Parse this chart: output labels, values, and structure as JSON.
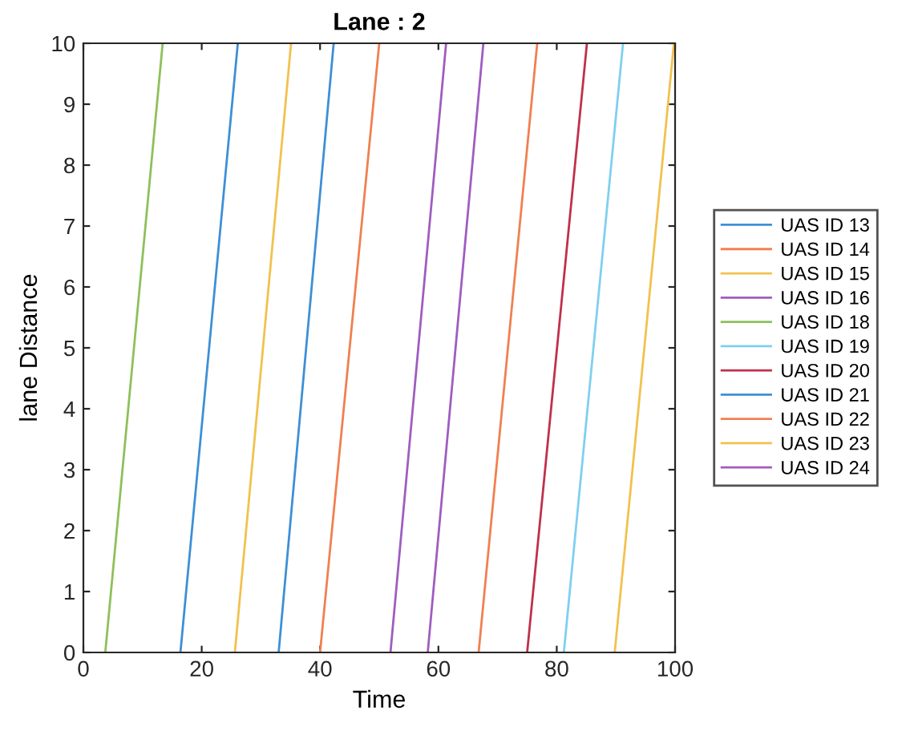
{
  "chart_data": {
    "type": "line",
    "title": "Lane : 2",
    "xlabel": "Time",
    "ylabel": "lane Distance",
    "xlim": [
      0,
      100
    ],
    "xticks": [
      0,
      20,
      40,
      60,
      80,
      100
    ],
    "ylim": [
      0,
      10
    ],
    "yticks": [
      0,
      1,
      2,
      3,
      4,
      5,
      6,
      7,
      8,
      9,
      10
    ],
    "grid": false,
    "legend": "right",
    "line_style": "solid",
    "marker": "none",
    "series": [
      {
        "name": "UAS ID 13",
        "color": "#3d8fd6",
        "x": [
          16.4,
          26.1
        ],
        "values": [
          0,
          10
        ]
      },
      {
        "name": "UAS ID 14",
        "color": "#f08050",
        "x": [
          40.0,
          50.0
        ],
        "values": [
          0,
          10
        ]
      },
      {
        "name": "UAS ID 15",
        "color": "#f2c14e",
        "x": [
          25.6,
          35.1
        ],
        "values": [
          0,
          10
        ]
      },
      {
        "name": "UAS ID 16",
        "color": "#a05cc0",
        "x": [
          51.9,
          61.3
        ],
        "values": [
          0,
          10
        ]
      },
      {
        "name": "UAS ID 18",
        "color": "#8dc05a",
        "x": [
          3.7,
          13.4
        ],
        "values": [
          0,
          10
        ]
      },
      {
        "name": "UAS ID 19",
        "color": "#7fcff0",
        "x": [
          81.2,
          91.2
        ],
        "values": [
          0,
          10
        ]
      },
      {
        "name": "UAS ID 20",
        "color": "#c0304a",
        "x": [
          75.0,
          85.1
        ],
        "values": [
          0,
          10
        ]
      },
      {
        "name": "UAS ID 21",
        "color": "#3d8fd6",
        "x": [
          33.0,
          42.3
        ],
        "values": [
          0,
          10
        ]
      },
      {
        "name": "UAS ID 22",
        "color": "#f08050",
        "x": [
          66.8,
          76.7
        ],
        "values": [
          0,
          10
        ]
      },
      {
        "name": "UAS ID 23",
        "color": "#f2c14e",
        "x": [
          89.8,
          99.8
        ],
        "values": [
          0,
          10
        ]
      },
      {
        "name": "UAS ID 24",
        "color": "#a05cc0",
        "x": [
          58.2,
          67.6
        ],
        "values": [
          0,
          10
        ]
      }
    ]
  }
}
